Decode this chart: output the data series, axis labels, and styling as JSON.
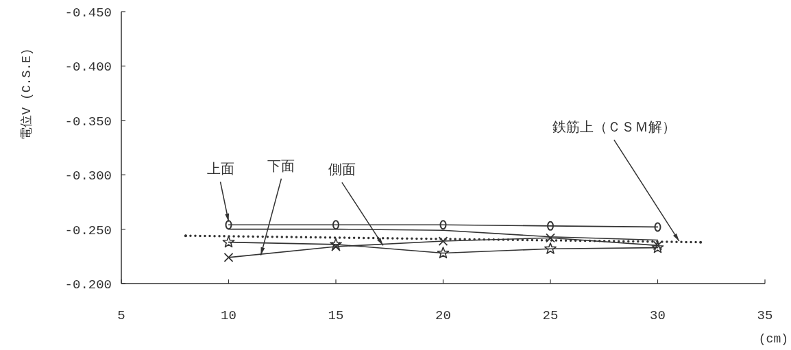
{
  "chart_data": {
    "type": "line",
    "xlabel": "(cm)",
    "ylabel": "電位V (C.S.E)",
    "x": [
      10,
      15,
      20,
      25,
      30
    ],
    "series": [
      {
        "color": "#333333",
        "marker": "circle",
        "line_style": "solid",
        "values": [
          -0.254,
          -0.254,
          -0.254,
          -0.253,
          -0.252
        ]
      },
      {
        "color": "#333333",
        "marker": "none",
        "line_style": "solid",
        "values": [
          -0.25,
          -0.25,
          -0.249,
          -0.243,
          -0.24
        ]
      },
      {
        "color": "#333333",
        "marker": "star",
        "line_style": "solid",
        "values": [
          -0.238,
          -0.236,
          -0.228,
          -0.232,
          -0.233
        ]
      },
      {
        "color": "#333333",
        "marker": "cross",
        "line_style": "solid",
        "values": [
          -0.224,
          -0.234,
          -0.239,
          -0.242,
          -0.235
        ]
      },
      {
        "color": "#333333",
        "marker": "none",
        "line_style": "dotted",
        "x": [
          8,
          32
        ],
        "values": [
          -0.244,
          -0.238
        ]
      }
    ],
    "annotations": [
      {
        "text": "上面",
        "x": 10,
        "y": -0.257
      },
      {
        "text": "下面",
        "x": 11.5,
        "y": -0.226
      },
      {
        "text": "側面",
        "x": 17.2,
        "y": -0.235
      },
      {
        "text": "鉄筋上（ＣＳＭ解）",
        "x": 31,
        "y": -0.239
      }
    ],
    "xlim": [
      5,
      35
    ],
    "ylim": [
      -0.2,
      -0.45
    ],
    "xticks": [
      5,
      10,
      15,
      20,
      25,
      30,
      35
    ],
    "yticks": [
      {
        "value": -0.2,
        "label": "-0.200"
      },
      {
        "value": -0.25,
        "label": "-0.250"
      },
      {
        "value": -0.3,
        "label": "-0.300"
      },
      {
        "value": -0.35,
        "label": "-0.350"
      },
      {
        "value": -0.4,
        "label": "-0.400"
      },
      {
        "value": -0.45,
        "label": "-0.450"
      }
    ],
    "grid": false
  }
}
